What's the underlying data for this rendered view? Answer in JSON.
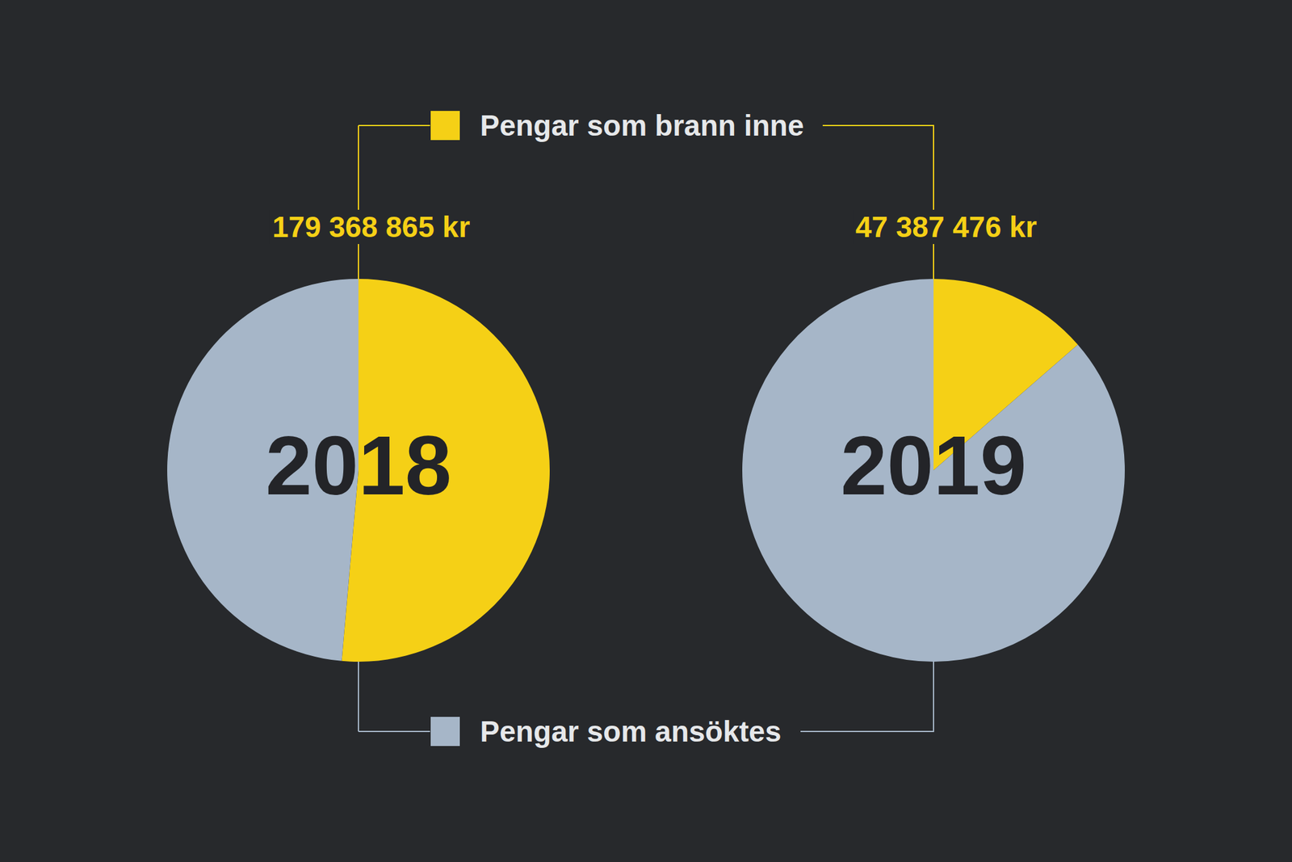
{
  "chart_data": [
    {
      "type": "pie",
      "title": "2018",
      "categories": [
        "Pengar som brann inne",
        "Pengar som ansöktes"
      ],
      "values": [
        179368865,
        169600000
      ],
      "value_labels": [
        "179 368 865 kr",
        null
      ],
      "colors": [
        "#f5d016",
        "#a6b6c8"
      ]
    },
    {
      "type": "pie",
      "title": "2019",
      "categories": [
        "Pengar som brann inne",
        "Pengar som ansöktes"
      ],
      "values": [
        47387476,
        301000000
      ],
      "value_labels": [
        "47 387 476 kr",
        null
      ],
      "colors": [
        "#f5d016",
        "#a6b6c8"
      ]
    }
  ]
}
